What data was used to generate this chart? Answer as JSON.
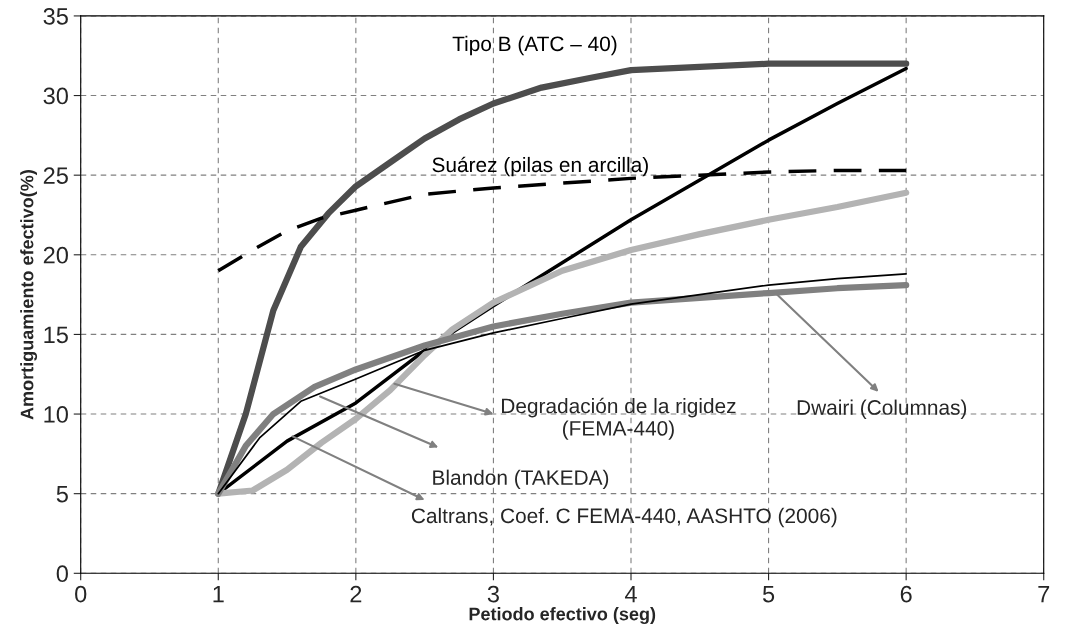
{
  "chart_data": {
    "type": "line",
    "xlabel": "Petiodo efectivo (seg)",
    "ylabel": "Amortiguamiento efectivo(%)",
    "xlim": [
      0,
      7
    ],
    "xticks": [
      0,
      1,
      2,
      3,
      4,
      5,
      6,
      7
    ],
    "ylim": [
      0,
      35
    ],
    "yticks": [
      0,
      5,
      10,
      15,
      20,
      25,
      30,
      35
    ],
    "grid": true,
    "series": [
      {
        "name": "Tipo B (ATC – 40)",
        "color": "#4d4d4d",
        "x": [
          1,
          1.2,
          1.4,
          1.6,
          1.8,
          2,
          2.25,
          2.5,
          2.75,
          3,
          3.35,
          3.7,
          4,
          4.5,
          5,
          5.5,
          6
        ],
        "values": [
          5,
          10,
          16.5,
          20.5,
          22.6,
          24.3,
          25.8,
          27.3,
          28.5,
          29.5,
          30.5,
          31.1,
          31.6,
          31.8,
          32,
          32,
          32
        ]
      },
      {
        "name": "Suárez (pilas en arcilla)",
        "color": "#000000",
        "line_style": "dashed",
        "x": [
          1,
          1.25,
          1.5,
          1.75,
          2,
          2.5,
          3,
          3.5,
          4,
          4.5,
          5,
          5.5,
          6
        ],
        "values": [
          19,
          20.3,
          21.5,
          22.3,
          22.8,
          23.8,
          24.2,
          24.5,
          24.8,
          25,
          25.2,
          25.3,
          25.3
        ]
      },
      {
        "color": "#000000",
        "x": [
          1,
          1.5,
          2,
          2.5,
          3,
          3.5,
          4,
          4.5,
          5,
          5.5,
          6
        ],
        "values": [
          5,
          8.3,
          10.7,
          14,
          16.8,
          19.5,
          22.2,
          24.7,
          27.2,
          29.5,
          31.7
        ]
      },
      {
        "color": "#b3b3b3",
        "x": [
          1,
          1.25,
          1.5,
          1.75,
          2,
          2.25,
          2.5,
          2.7,
          3,
          3.5,
          4,
          4.5,
          5,
          5.5,
          6
        ],
        "values": [
          5,
          5.2,
          6.5,
          8.2,
          9.7,
          11.5,
          13.7,
          15.3,
          17,
          19,
          20.3,
          21.3,
          22.2,
          23,
          23.9
        ]
      },
      {
        "color": "#808080",
        "x": [
          1,
          1.2,
          1.4,
          1.7,
          2,
          2.5,
          3,
          3.5,
          4,
          4.5,
          5,
          5.5,
          6
        ],
        "values": [
          5,
          8,
          10,
          11.7,
          12.8,
          14.3,
          15.5,
          16.3,
          17,
          17.3,
          17.6,
          17.9,
          18.1
        ]
      },
      {
        "color": "#000000",
        "x": [
          1,
          1.3,
          1.6,
          2,
          2.5,
          3,
          3.5,
          4,
          4.5,
          5,
          5.5,
          6
        ],
        "values": [
          5,
          8.5,
          10.8,
          12.2,
          14,
          15.1,
          16,
          16.9,
          17.5,
          18.1,
          18.5,
          18.8
        ]
      }
    ],
    "annotations": [
      {
        "text": "Dwairi (Columnas)",
        "x": 5.05,
        "y": 17.6
      },
      {
        "text": "Degradación de la rigidez\n(FEMA-440)",
        "x": 2.28,
        "y": 11.9
      },
      {
        "text": "Blandon (TAKEDA)",
        "x": 1.74,
        "y": 11.1
      },
      {
        "text": "Caltrans, Coef. C FEMA-440, AASHTO (2006)",
        "x": 1.54,
        "y": 8.6
      }
    ]
  }
}
